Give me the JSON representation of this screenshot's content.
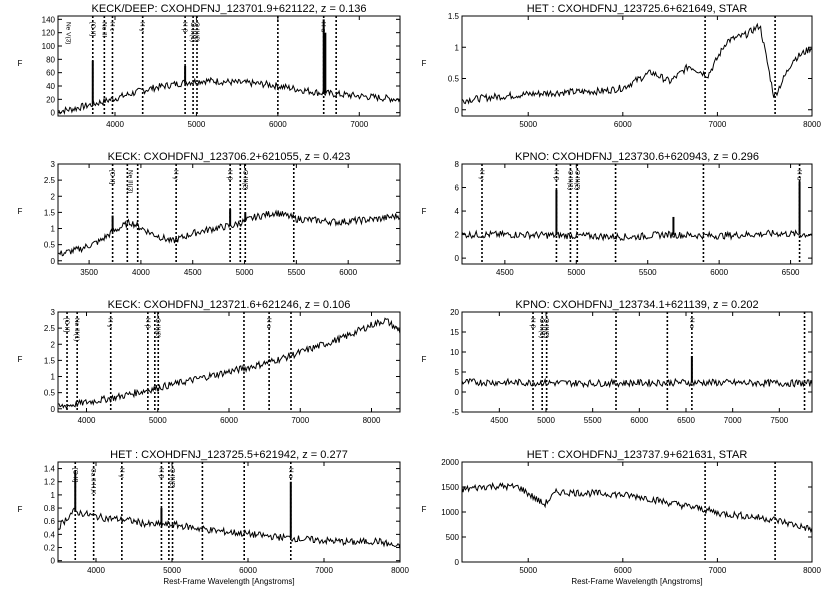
{
  "chart_data": [
    {
      "type": "line",
      "title": "KECK/DEEP: CXOHDFNJ_123701.9+621122, z = 0.136",
      "ylabel": "F",
      "xlabel": "",
      "xlim": [
        3300,
        7500
      ],
      "ylim": [
        -5,
        145
      ],
      "xticks": [
        4000,
        5000,
        6000,
        7000
      ],
      "yticks": [
        0,
        20,
        40,
        60,
        80,
        100,
        120,
        140
      ],
      "series": [
        {
          "x": [
            3300,
            3500,
            3700,
            3900,
            4100,
            4300,
            4500,
            4700,
            4900,
            5100,
            5300,
            5500,
            5700,
            5900,
            6100,
            6300,
            6500,
            6700,
            6900,
            7100,
            7300,
            7500
          ],
          "y": [
            2,
            6,
            12,
            18,
            25,
            32,
            38,
            42,
            46,
            48,
            47,
            45,
            44,
            42,
            38,
            34,
            30,
            28,
            26,
            24,
            22,
            20
          ]
        }
      ],
      "spikes": [
        {
          "x": 3727,
          "y": 78
        },
        {
          "x": 4861,
          "y": 70
        },
        {
          "x": 6563,
          "y": 140
        },
        {
          "x": 6583,
          "y": 120
        }
      ],
      "dotted_lines": [
        3727,
        3869,
        3969,
        4340,
        4861,
        4959,
        5007,
        6000,
        6563,
        6716
      ],
      "line_labels": [
        {
          "x": 3430,
          "text": "Ne V(3)"
        },
        {
          "x": 3727,
          "text": "[O II]"
        },
        {
          "x": 3869,
          "text": "Ne III"
        },
        {
          "x": 3969,
          "text": "H ε"
        },
        {
          "x": 4340,
          "text": "H γ"
        },
        {
          "x": 4861,
          "text": "H β"
        },
        {
          "x": 4959,
          "text": "O III(1)"
        },
        {
          "x": 5007,
          "text": "O III(2)"
        },
        {
          "x": 6563,
          "text": "H α"
        }
      ]
    },
    {
      "type": "line",
      "title": "HET : CXOHDFNJ_123725.6+621649, STAR",
      "ylabel": "F",
      "xlabel": "",
      "xlim": [
        4300,
        8000
      ],
      "ylim": [
        -0.1,
        1.5
      ],
      "xticks": [
        5000,
        6000,
        7000,
        8000
      ],
      "yticks": [
        0.0,
        0.5,
        1.0,
        1.5
      ],
      "series": [
        {
          "x": [
            4300,
            4600,
            5000,
            5400,
            5800,
            6000,
            6300,
            6500,
            6700,
            6900,
            7100,
            7300,
            7450,
            7600,
            7800,
            8000
          ],
          "y": [
            0.15,
            0.2,
            0.25,
            0.28,
            0.3,
            0.35,
            0.6,
            0.45,
            0.7,
            0.55,
            1.1,
            1.2,
            1.35,
            0.2,
            0.8,
            1.0
          ]
        }
      ],
      "spikes": [],
      "dotted_lines": [
        6870,
        7610
      ],
      "line_labels": []
    },
    {
      "type": "line",
      "title": "KECK: CXOHDFNJ_123706.2+621055, z = 0.423",
      "ylabel": "F",
      "xlabel": "",
      "xlim": [
        3200,
        6500
      ],
      "ylim": [
        -0.1,
        3.0
      ],
      "xticks": [
        3500,
        4000,
        4500,
        5000,
        5500,
        6000
      ],
      "yticks": [
        0.0,
        0.5,
        1.0,
        1.5,
        2.0,
        2.5,
        3.0
      ],
      "series": [
        {
          "x": [
            3200,
            3400,
            3600,
            3727,
            3900,
            4100,
            4300,
            4500,
            4700,
            4900,
            5100,
            5300,
            5500,
            5700,
            5900,
            6100,
            6300,
            6500
          ],
          "y": [
            0.2,
            0.35,
            0.6,
            0.9,
            1.2,
            0.85,
            0.6,
            0.85,
            1.0,
            1.1,
            1.35,
            1.5,
            1.3,
            1.25,
            1.2,
            1.25,
            1.3,
            1.4
          ]
        }
      ],
      "spikes": [
        {
          "x": 3727,
          "y": 1.4
        },
        {
          "x": 4861,
          "y": 1.6
        },
        {
          "x": 5007,
          "y": 1.5
        }
      ],
      "dotted_lines": [
        3727,
        3869,
        3969,
        4340,
        4861,
        4959,
        5007,
        5475
      ],
      "line_labels": [
        {
          "x": 3727,
          "text": "[O II]"
        },
        {
          "x": 3900,
          "text": "Ne III(3)"
        },
        {
          "x": 4340,
          "text": "H γ"
        },
        {
          "x": 4861,
          "text": "H β"
        },
        {
          "x": 5007,
          "text": "O III(2)"
        }
      ]
    },
    {
      "type": "line",
      "title": "KPNO: CXOHDFNJ_123730.6+620943, z = 0.296",
      "ylabel": "F",
      "xlabel": "",
      "xlim": [
        4200,
        6650
      ],
      "ylim": [
        -0.5,
        8
      ],
      "xticks": [
        4500,
        5000,
        5500,
        6000,
        6500
      ],
      "yticks": [
        0,
        2,
        4,
        6,
        8
      ],
      "series": [
        {
          "x": [
            4200,
            4600,
            5000,
            5400,
            5600,
            6000,
            6400,
            6650
          ],
          "y": [
            2.0,
            2.0,
            1.9,
            1.8,
            2.0,
            1.9,
            2.1,
            2.0
          ]
        }
      ],
      "spikes": [
        {
          "x": 4861,
          "y": 5.8
        },
        {
          "x": 5680,
          "y": 3.5
        },
        {
          "x": 6563,
          "y": 6.5
        }
      ],
      "dotted_lines": [
        4340,
        4861,
        4959,
        5007,
        5275,
        5890,
        6563
      ],
      "line_labels": [
        {
          "x": 4340,
          "text": "H γ"
        },
        {
          "x": 4861,
          "text": "H β"
        },
        {
          "x": 4959,
          "text": "O III(1)"
        },
        {
          "x": 5007,
          "text": "O III(2)"
        },
        {
          "x": 6563,
          "text": "H α"
        }
      ]
    },
    {
      "type": "line",
      "title": "KECK: CXOHDFNJ_123721.6+621246, z = 0.106",
      "ylabel": "F",
      "xlabel": "",
      "xlim": [
        3600,
        8400
      ],
      "ylim": [
        -0.1,
        3.0
      ],
      "xticks": [
        4000,
        5000,
        6000,
        7000,
        8000
      ],
      "yticks": [
        0.0,
        0.5,
        1.0,
        1.5,
        2.0,
        2.5,
        3.0
      ],
      "series": [
        {
          "x": [
            3600,
            4000,
            4400,
            4800,
            5200,
            5600,
            6000,
            6400,
            6800,
            7200,
            7600,
            8000,
            8200,
            8400
          ],
          "y": [
            0.05,
            0.2,
            0.35,
            0.55,
            0.75,
            0.95,
            1.15,
            1.35,
            1.6,
            1.9,
            2.2,
            2.6,
            2.75,
            2.4
          ]
        }
      ],
      "spikes": [],
      "dotted_lines": [
        3727,
        3869,
        4340,
        4861,
        4959,
        5007,
        6210,
        6563,
        6870
      ],
      "line_labels": [
        {
          "x": 3727,
          "text": "[O II]"
        },
        {
          "x": 3869,
          "text": "Ne III(1)"
        },
        {
          "x": 4340,
          "text": "H γ"
        },
        {
          "x": 4861,
          "text": "H β"
        },
        {
          "x": 5007,
          "text": "O III(2)"
        },
        {
          "x": 6563,
          "text": "H α"
        }
      ]
    },
    {
      "type": "line",
      "title": "KPNO: CXOHDFNJ_123734.1+621139, z = 0.202",
      "ylabel": "F",
      "xlabel": "",
      "xlim": [
        4100,
        7850
      ],
      "ylim": [
        -5,
        20
      ],
      "xticks": [
        4500,
        5000,
        5500,
        6000,
        6500,
        7000,
        7500
      ],
      "yticks": [
        -5,
        0,
        5,
        10,
        15,
        20
      ],
      "series": [
        {
          "x": [
            4100,
            4500,
            5000,
            5500,
            6000,
            6500,
            7000,
            7500,
            7850
          ],
          "y": [
            2.5,
            2.4,
            2.3,
            2.2,
            2.3,
            2.4,
            2.3,
            2.2,
            2.2
          ]
        }
      ],
      "spikes": [
        {
          "x": 6563,
          "y": 9
        }
      ],
      "dotted_lines": [
        4861,
        4959,
        5007,
        5750,
        6300,
        6563,
        7770
      ],
      "line_labels": [
        {
          "x": 4861,
          "text": "H β"
        },
        {
          "x": 4959,
          "text": "O III(1)"
        },
        {
          "x": 5007,
          "text": "O III(2)"
        },
        {
          "x": 6563,
          "text": "H α"
        }
      ]
    },
    {
      "type": "line",
      "title": "HET : CXOHDFNJ_123725.5+621942, z = 0.277",
      "ylabel": "F",
      "xlabel": "Rest-Frame Wavelength [Angstroms]",
      "xlim": [
        3500,
        8000
      ],
      "ylim": [
        -0.02,
        1.5
      ],
      "xticks": [
        4000,
        5000,
        6000,
        7000,
        8000
      ],
      "yticks": [
        0.0,
        0.2,
        0.4,
        0.6,
        0.8,
        1.0,
        1.2,
        1.4
      ],
      "series": [
        {
          "x": [
            3500,
            3700,
            3900,
            4100,
            4400,
            4700,
            5000,
            5300,
            5600,
            5900,
            6200,
            6500,
            6800,
            7100,
            7400,
            7700,
            8000
          ],
          "y": [
            0.5,
            0.75,
            0.7,
            0.65,
            0.62,
            0.55,
            0.55,
            0.5,
            0.45,
            0.42,
            0.38,
            0.35,
            0.32,
            0.3,
            0.28,
            0.3,
            0.2
          ]
        }
      ],
      "spikes": [
        {
          "x": 3727,
          "y": 1.35
        },
        {
          "x": 4861,
          "y": 0.8
        },
        {
          "x": 6563,
          "y": 1.2
        }
      ],
      "dotted_lines": [
        3727,
        3969,
        4340,
        4861,
        4959,
        5007,
        5400,
        5950,
        6563
      ],
      "line_labels": [
        {
          "x": 3727,
          "text": "[O II]"
        },
        {
          "x": 3969,
          "text": "Ca II H,K"
        },
        {
          "x": 4340,
          "text": "H γ"
        },
        {
          "x": 4861,
          "text": "H β"
        },
        {
          "x": 5007,
          "text": "O III(2)"
        },
        {
          "x": 6563,
          "text": "H α"
        }
      ]
    },
    {
      "type": "line",
      "title": "HET : CXOHDFNJ_123737.9+621631, STAR",
      "ylabel": "F",
      "xlabel": "Rest-Frame Wavelength [Angstroms]",
      "xlim": [
        4300,
        8000
      ],
      "ylim": [
        0,
        2000
      ],
      "xticks": [
        5000,
        6000,
        7000,
        8000
      ],
      "yticks": [
        0,
        500,
        1000,
        1500,
        2000
      ],
      "series": [
        {
          "x": [
            4300,
            4600,
            4900,
            5170,
            5300,
            5600,
            5900,
            6200,
            6500,
            6870,
            7000,
            7300,
            7600,
            7700,
            8000
          ],
          "y": [
            1450,
            1520,
            1500,
            1150,
            1400,
            1380,
            1360,
            1300,
            1180,
            1050,
            980,
            920,
            850,
            800,
            650
          ]
        }
      ],
      "spikes": [],
      "dotted_lines": [
        6870,
        7610
      ],
      "line_labels": []
    }
  ]
}
